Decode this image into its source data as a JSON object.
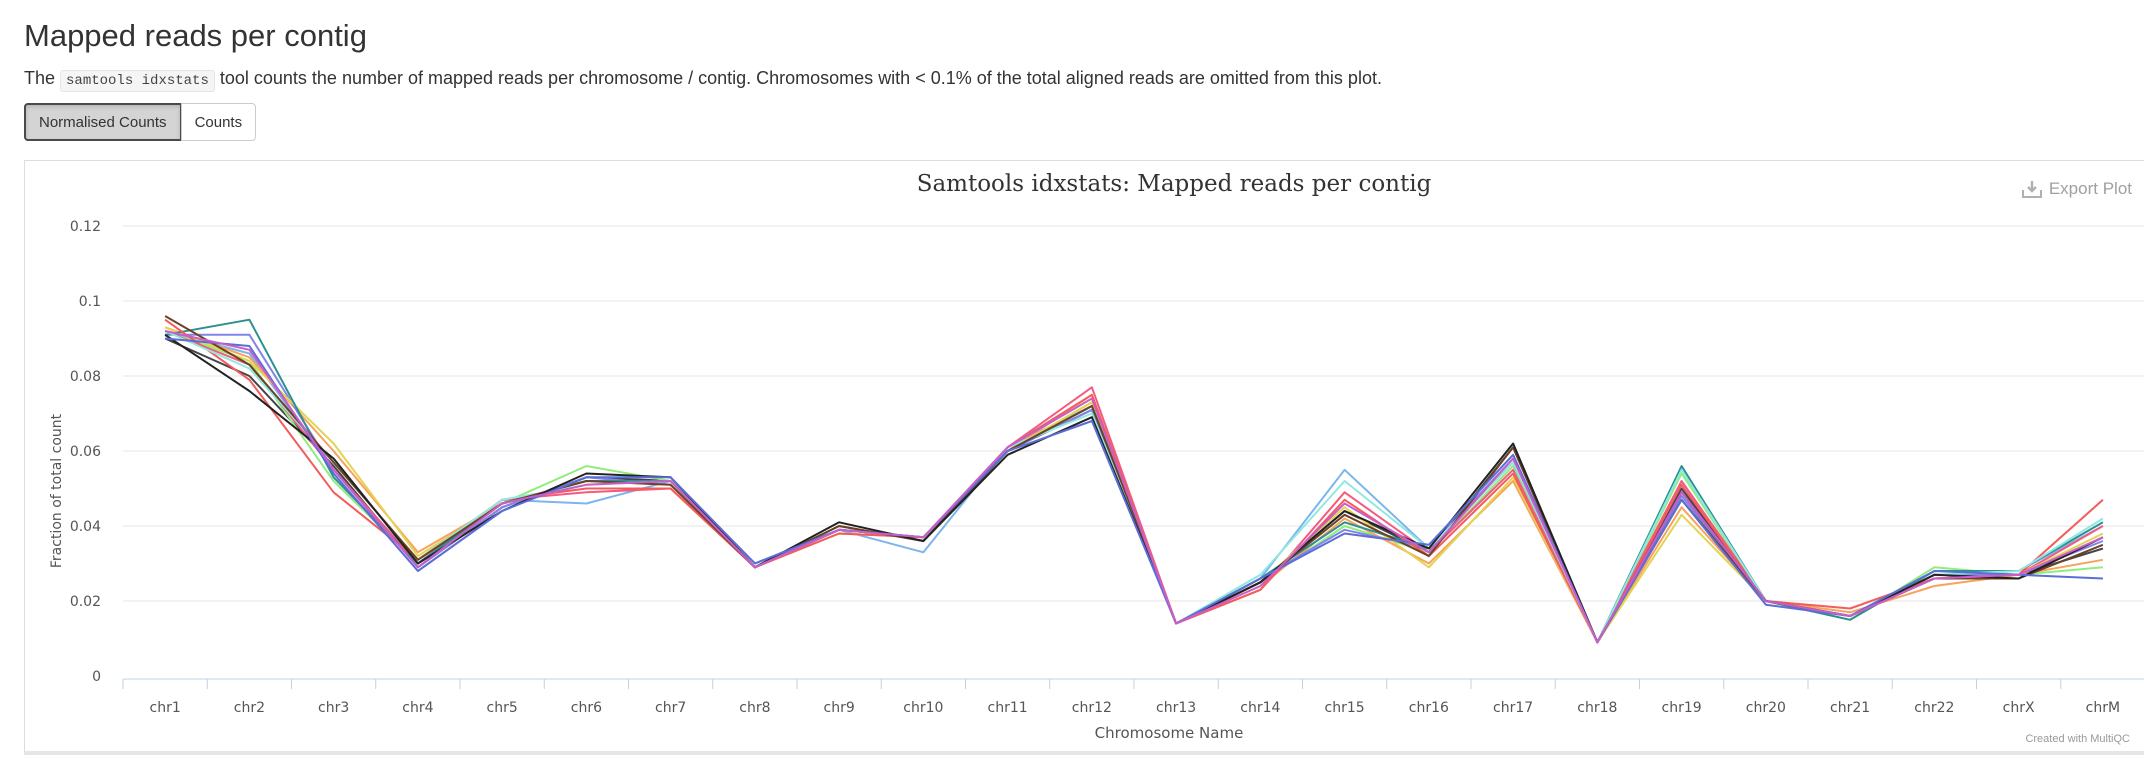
{
  "header": {
    "title": "Mapped reads per contig",
    "description_prefix": "The ",
    "description_code": "samtools idxstats",
    "description_suffix": " tool counts the number of mapped reads per chromosome / contig. Chromosomes with < 0.1% of the total aligned reads are omitted from this plot."
  },
  "toggle": {
    "normalised_label": "Normalised Counts",
    "counts_label": "Counts",
    "active": "normalised"
  },
  "plot": {
    "export_label": "Export Plot",
    "export_icon": "download-icon",
    "credit": "Created with MultiQC"
  },
  "chart_data": {
    "type": "line",
    "title": "Samtools idxstats: Mapped reads per contig",
    "xlabel": "Chromosome Name",
    "ylabel": "Fraction of total count",
    "ylim": [
      0,
      0.12
    ],
    "yticks": [
      0,
      0.02,
      0.04,
      0.06,
      0.08,
      0.1,
      0.12
    ],
    "ytick_labels": [
      "0",
      "0.02",
      "0.04",
      "0.06",
      "0.08",
      "0.1",
      "0.12"
    ],
    "grid": true,
    "legend": "none",
    "categories": [
      "chr1",
      "chr2",
      "chr3",
      "chr4",
      "chr5",
      "chr6",
      "chr7",
      "chr8",
      "chr9",
      "chr10",
      "chr11",
      "chr12",
      "chr13",
      "chr14",
      "chr15",
      "chr16",
      "chr17",
      "chr18",
      "chr19",
      "chr20",
      "chr21",
      "chr22",
      "chrX",
      "chrM"
    ],
    "series": [
      {
        "color": "#7cb5ec",
        "values": [
          0.092,
          0.086,
          0.055,
          0.03,
          0.047,
          0.046,
          0.052,
          0.03,
          0.039,
          0.033,
          0.061,
          0.072,
          0.014,
          0.026,
          0.055,
          0.034,
          0.058,
          0.009,
          0.055,
          0.02,
          0.016,
          0.028,
          0.028,
          0.04
        ]
      },
      {
        "color": "#434348",
        "values": [
          0.09,
          0.08,
          0.056,
          0.029,
          0.045,
          0.053,
          0.052,
          0.029,
          0.04,
          0.036,
          0.06,
          0.071,
          0.014,
          0.025,
          0.044,
          0.033,
          0.061,
          0.009,
          0.05,
          0.02,
          0.016,
          0.027,
          0.027,
          0.034
        ]
      },
      {
        "color": "#90ed7d",
        "values": [
          0.092,
          0.084,
          0.052,
          0.03,
          0.046,
          0.056,
          0.052,
          0.029,
          0.039,
          0.037,
          0.06,
          0.073,
          0.014,
          0.025,
          0.04,
          0.033,
          0.056,
          0.009,
          0.054,
          0.02,
          0.015,
          0.029,
          0.027,
          0.029
        ]
      },
      {
        "color": "#f7a35c",
        "values": [
          0.093,
          0.085,
          0.06,
          0.033,
          0.046,
          0.052,
          0.052,
          0.029,
          0.038,
          0.037,
          0.06,
          0.075,
          0.014,
          0.024,
          0.042,
          0.03,
          0.052,
          0.009,
          0.045,
          0.02,
          0.017,
          0.024,
          0.027,
          0.031
        ]
      },
      {
        "color": "#8085e9",
        "values": [
          0.091,
          0.091,
          0.055,
          0.029,
          0.045,
          0.053,
          0.051,
          0.03,
          0.039,
          0.037,
          0.06,
          0.071,
          0.014,
          0.026,
          0.039,
          0.034,
          0.058,
          0.009,
          0.048,
          0.02,
          0.016,
          0.027,
          0.027,
          0.036
        ]
      },
      {
        "color": "#f15c80",
        "values": [
          0.092,
          0.083,
          0.055,
          0.03,
          0.047,
          0.049,
          0.05,
          0.029,
          0.039,
          0.037,
          0.061,
          0.077,
          0.014,
          0.023,
          0.049,
          0.033,
          0.055,
          0.009,
          0.052,
          0.02,
          0.016,
          0.026,
          0.027,
          0.04
        ]
      },
      {
        "color": "#e4d354",
        "values": [
          0.093,
          0.084,
          0.062,
          0.032,
          0.046,
          0.052,
          0.051,
          0.029,
          0.038,
          0.037,
          0.06,
          0.073,
          0.014,
          0.025,
          0.045,
          0.029,
          0.053,
          0.009,
          0.043,
          0.02,
          0.016,
          0.026,
          0.027,
          0.038
        ]
      },
      {
        "color": "#2b908f",
        "values": [
          0.091,
          0.095,
          0.053,
          0.03,
          0.046,
          0.052,
          0.052,
          0.029,
          0.039,
          0.037,
          0.06,
          0.072,
          0.014,
          0.026,
          0.041,
          0.034,
          0.057,
          0.009,
          0.056,
          0.02,
          0.015,
          0.028,
          0.028,
          0.041
        ]
      },
      {
        "color": "#f45b5b",
        "values": [
          0.095,
          0.079,
          0.049,
          0.031,
          0.047,
          0.05,
          0.05,
          0.029,
          0.038,
          0.037,
          0.061,
          0.075,
          0.014,
          0.023,
          0.047,
          0.032,
          0.054,
          0.009,
          0.051,
          0.02,
          0.018,
          0.026,
          0.027,
          0.047
        ]
      },
      {
        "color": "#91e8e1",
        "values": [
          0.092,
          0.082,
          0.057,
          0.031,
          0.047,
          0.051,
          0.052,
          0.03,
          0.039,
          0.037,
          0.061,
          0.07,
          0.014,
          0.027,
          0.052,
          0.034,
          0.057,
          0.009,
          0.055,
          0.02,
          0.016,
          0.027,
          0.028,
          0.042
        ]
      },
      {
        "color": "#6b4226",
        "values": [
          0.096,
          0.083,
          0.057,
          0.031,
          0.046,
          0.052,
          0.051,
          0.029,
          0.04,
          0.036,
          0.06,
          0.072,
          0.014,
          0.025,
          0.043,
          0.032,
          0.061,
          0.009,
          0.047,
          0.02,
          0.016,
          0.026,
          0.026,
          0.035
        ]
      },
      {
        "color": "#222222",
        "values": [
          0.091,
          0.076,
          0.058,
          0.03,
          0.044,
          0.054,
          0.053,
          0.029,
          0.041,
          0.036,
          0.059,
          0.069,
          0.014,
          0.025,
          0.044,
          0.034,
          0.062,
          0.009,
          0.049,
          0.02,
          0.016,
          0.027,
          0.026,
          0.037
        ]
      },
      {
        "color": "#5b6dd6",
        "values": [
          0.09,
          0.088,
          0.054,
          0.028,
          0.044,
          0.053,
          0.053,
          0.03,
          0.039,
          0.037,
          0.06,
          0.068,
          0.014,
          0.026,
          0.038,
          0.035,
          0.059,
          0.009,
          0.047,
          0.019,
          0.016,
          0.028,
          0.027,
          0.026
        ]
      },
      {
        "color": "#c95ecb",
        "values": [
          0.092,
          0.087,
          0.055,
          0.029,
          0.046,
          0.051,
          0.052,
          0.029,
          0.039,
          0.037,
          0.061,
          0.074,
          0.014,
          0.024,
          0.046,
          0.033,
          0.058,
          0.009,
          0.049,
          0.02,
          0.016,
          0.026,
          0.027,
          0.037
        ]
      }
    ]
  }
}
